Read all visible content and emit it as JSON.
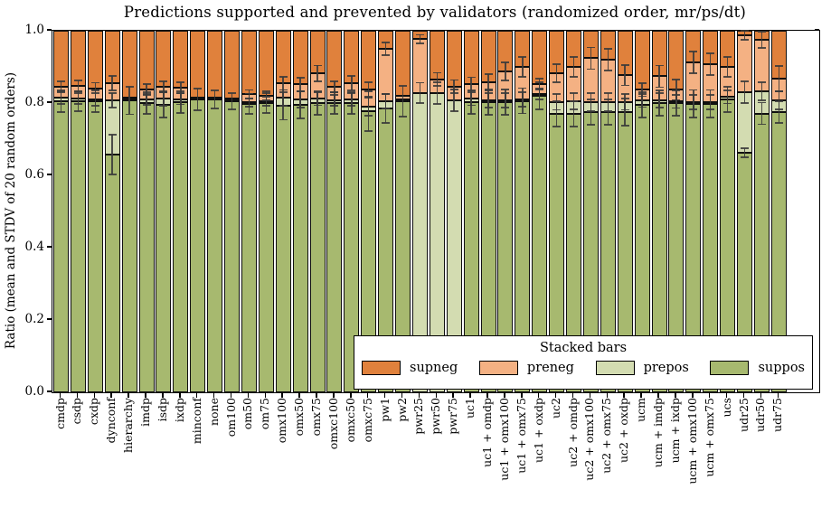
{
  "title": "Predictions supported and prevented by validators (randomized order, mr/ps/dt)",
  "axes": {
    "ylabel": "Ratio (mean and STDV of 20 random orders)",
    "ytick_labels": [
      "0.0",
      "0.2",
      "0.4",
      "0.6",
      "0.8",
      "1.0"
    ],
    "ylim": [
      0.0,
      1.0
    ],
    "grid": false
  },
  "legend": {
    "title": "Stacked bars",
    "position": "lower right",
    "entries": [
      {
        "label": "supneg",
        "color": "#e0813c"
      },
      {
        "label": "preneg",
        "color": "#f4b183"
      },
      {
        "label": "prepos",
        "color": "#d3dcb1"
      },
      {
        "label": "suppos",
        "color": "#a7b96f"
      }
    ]
  },
  "colors": {
    "supneg": "#e0813c",
    "preneg": "#f4b183",
    "prepos": "#d3dcb1",
    "suppos": "#a7b96f",
    "bar_edge": "#101010",
    "error_bar": "#3a3a3a",
    "background": "#ffffff"
  },
  "chart_data": {
    "type": "bar",
    "stacked": true,
    "title": "Predictions supported and prevented by validators (randomized order, mr/ps/dt)",
    "xlabel": "",
    "ylabel": "Ratio (mean and STDV of 20 random orders)",
    "ylim": [
      0.0,
      1.0
    ],
    "legend_title": "Stacked bars",
    "legend_order": [
      "supneg",
      "preneg",
      "prepos",
      "suppos"
    ],
    "categories": [
      "cmdp",
      "csdp",
      "cxdp",
      "dynconf",
      "hierarchy",
      "imdp",
      "isdp",
      "ixdp",
      "minconf",
      "none",
      "om100",
      "om50",
      "om75",
      "omx100",
      "omx50",
      "omx75",
      "omxc100",
      "omxc50",
      "omxc75",
      "pw1",
      "pw2",
      "pwr25",
      "pwr50",
      "pwr75",
      "uc1",
      "uc1 + omdp",
      "uc1 + omx100",
      "uc1 + omx75",
      "uc1 + oxdp",
      "uc2",
      "uc2 + omdp",
      "uc2 + omx100",
      "uc2 + omx75",
      "uc2 + oxdp",
      "ucm",
      "ucm + imdp",
      "ucm + ixdp",
      "ucm + omx100",
      "ucm + omx75",
      "ucs",
      "udr25",
      "udr50",
      "udr75"
    ],
    "series": [
      {
        "name": "suppos",
        "color": "#a7b96f",
        "values": [
          0.805,
          0.805,
          0.805,
          0.6575,
          0.807,
          0.8,
          0.795,
          0.803,
          0.81,
          0.81,
          0.805,
          0.798,
          0.8,
          0.792,
          0.795,
          0.8,
          0.8,
          0.8,
          0.778,
          0.785,
          0.805,
          0.0,
          0.0,
          0.0,
          0.802,
          0.8025,
          0.803,
          0.806,
          0.82,
          0.77,
          0.77,
          0.775,
          0.775,
          0.775,
          0.795,
          0.8,
          0.8,
          0.798,
          0.798,
          0.81,
          0.6625,
          0.771,
          0.775
        ]
      },
      {
        "name": "prepos",
        "color": "#d3dcb1",
        "values": [
          0.01,
          0.008,
          0.006,
          0.15,
          0.003,
          0.01,
          0.017,
          0.008,
          0.002,
          0.002,
          0.003,
          0.004,
          0.005,
          0.022,
          0.015,
          0.012,
          0.008,
          0.01,
          0.012,
          0.02,
          0.004,
          0.828,
          0.828,
          0.808,
          0.01,
          0.005,
          0.004,
          0.004,
          0.005,
          0.033,
          0.035,
          0.028,
          0.028,
          0.028,
          0.012,
          0.007,
          0.004,
          0.005,
          0.005,
          0.007,
          0.1675,
          0.062,
          0.033
        ]
      },
      {
        "name": "preneg",
        "color": "#f4b183",
        "values": [
          0.03,
          0.035,
          0.03,
          0.048,
          0.004,
          0.028,
          0.033,
          0.031,
          0.003,
          0.003,
          0.004,
          0.022,
          0.015,
          0.04,
          0.042,
          0.07,
          0.037,
          0.045,
          0.047,
          0.145,
          0.011,
          0.149,
          0.038,
          0.038,
          0.041,
          0.05,
          0.08,
          0.09,
          0.028,
          0.08,
          0.095,
          0.121,
          0.117,
          0.074,
          0.03,
          0.067,
          0.033,
          0.109,
          0.105,
          0.083,
          0.1575,
          0.142,
          0.059
        ]
      },
      {
        "name": "supneg",
        "color": "#e0813c",
        "values": [
          0.155,
          0.152,
          0.159,
          0.1445,
          0.186,
          0.162,
          0.155,
          0.158,
          0.185,
          0.185,
          0.188,
          0.176,
          0.18,
          0.146,
          0.148,
          0.118,
          0.155,
          0.145,
          0.163,
          0.05,
          0.18,
          0.023,
          0.134,
          0.154,
          0.147,
          0.1425,
          0.113,
          0.1,
          0.147,
          0.117,
          0.1,
          0.076,
          0.08,
          0.123,
          0.163,
          0.126,
          0.163,
          0.088,
          0.092,
          0.1,
          0.0125,
          0.025,
          0.133
        ]
      }
    ],
    "error_bars": {
      "description": "STDV half-widths centered on cumulative segment boundaries",
      "at_suppos_top": [
        0.03,
        0.028,
        0.03,
        0.055,
        0.038,
        0.03,
        0.035,
        0.03,
        0.03,
        0.025,
        0.022,
        0.028,
        0.028,
        0.038,
        0.038,
        0.032,
        0.03,
        0.03,
        0.055,
        0.04,
        0.042,
        0,
        0,
        0,
        0.032,
        0.035,
        0.035,
        0.035,
        0.038,
        0.035,
        0.035,
        0.035,
        0.035,
        0.038,
        0.035,
        0.035,
        0.035,
        0.038,
        0.038,
        0.035,
        0.012,
        0.03,
        0.03
      ],
      "at_prepos_top": [
        0.018,
        0.015,
        0.018,
        0.02,
        0,
        0.015,
        0.02,
        0.015,
        0,
        0,
        0,
        0.012,
        0.012,
        0.022,
        0.022,
        0.018,
        0.015,
        0.018,
        0.025,
        0.02,
        0,
        0.028,
        0.03,
        0.03,
        0.018,
        0.02,
        0.02,
        0.02,
        0.015,
        0.022,
        0.022,
        0.025,
        0.025,
        0.022,
        0.018,
        0.02,
        0.018,
        0.02,
        0.02,
        0.018,
        0.03,
        0.025,
        0.025
      ],
      "at_preneg_top": [
        0.015,
        0.015,
        0.015,
        0.02,
        0,
        0.015,
        0.015,
        0.015,
        0,
        0,
        0,
        0.012,
        0.012,
        0.018,
        0.018,
        0.022,
        0.015,
        0.02,
        0.02,
        0.018,
        0,
        0.012,
        0.018,
        0.018,
        0.018,
        0.022,
        0.025,
        0.028,
        0.015,
        0.025,
        0.028,
        0.03,
        0.03,
        0.028,
        0.018,
        0.03,
        0.028,
        0.03,
        0.03,
        0.028,
        0.012,
        0.022,
        0.035
      ]
    }
  }
}
